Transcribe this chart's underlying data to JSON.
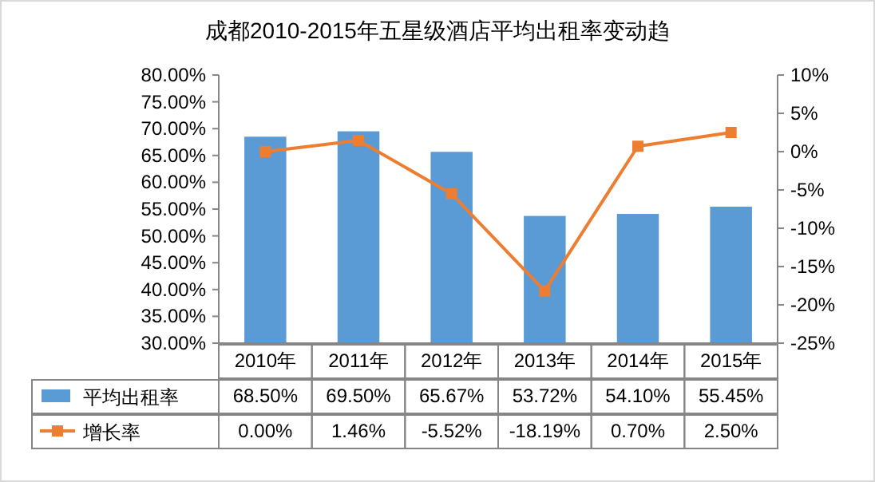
{
  "chart_data": {
    "type": "bar",
    "title": "成都2010-2015年五星级酒店平均出租率变动趋",
    "categories": [
      "2010年",
      "2011年",
      "2012年",
      "2013年",
      "2014年",
      "2015年"
    ],
    "series": [
      {
        "name": "平均出租率",
        "color": "#5b9bd5",
        "values": [
          68.5,
          69.5,
          65.67,
          53.72,
          54.1,
          55.45
        ],
        "value_labels": [
          "68.50%",
          "69.50%",
          "65.67%",
          "53.72%",
          "54.10%",
          "55.45%"
        ]
      },
      {
        "name": "增长率",
        "type": "line",
        "axis": "y2",
        "color": "#ed7d31",
        "marker": "square",
        "values": [
          0.0,
          1.46,
          -5.52,
          -18.19,
          0.7,
          2.5
        ],
        "value_labels": [
          "0.00%",
          "1.46%",
          "-5.52%",
          "-18.19%",
          "0.70%",
          "2.50%"
        ]
      }
    ],
    "ylim": [
      30,
      80
    ],
    "yticks": [
      {
        "value": 30,
        "label": "30.00%"
      },
      {
        "value": 35,
        "label": "35.00%"
      },
      {
        "value": 40,
        "label": "40.00%"
      },
      {
        "value": 45,
        "label": "45.00%"
      },
      {
        "value": 50,
        "label": "50.00%"
      },
      {
        "value": 55,
        "label": "55.00%"
      },
      {
        "value": 60,
        "label": "60.00%"
      },
      {
        "value": 65,
        "label": "65.00%"
      },
      {
        "value": 70,
        "label": "70.00%"
      },
      {
        "value": 75,
        "label": "75.00%"
      },
      {
        "value": 80,
        "label": "80.00%"
      }
    ],
    "y2lim": [
      -25,
      10
    ],
    "y2ticks": [
      {
        "value": -25,
        "label": "-25%"
      },
      {
        "value": -20,
        "label": "-20%"
      },
      {
        "value": -15,
        "label": "-15%"
      },
      {
        "value": -10,
        "label": "-10%"
      },
      {
        "value": -5,
        "label": "-5%"
      },
      {
        "value": 0,
        "label": "0%"
      },
      {
        "value": 5,
        "label": "5%"
      },
      {
        "value": 10,
        "label": "10%"
      }
    ],
    "legend": "bottom"
  }
}
